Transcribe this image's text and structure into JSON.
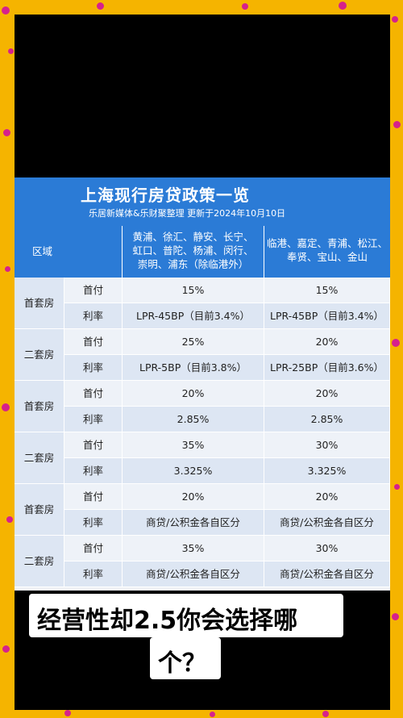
{
  "poster": {
    "title": "上海现行房贷政策一览",
    "subtitle": "乐居新媒体&乐财聚整理 更新于2024年10月10日"
  },
  "table": {
    "header": {
      "region_label": "区域",
      "col_a_line1": "黄浦、徐汇、静安、长宁、",
      "col_a_line2": "虹口、普陀、杨浦、闵行、",
      "col_a_line3": "崇明、浦东（除临港外）",
      "col_b_line1": "临港、嘉定、青浦、松江、",
      "col_b_line2": "奉贤、宝山、金山"
    },
    "rows": [
      {
        "group": "首套房",
        "items": [
          {
            "label": "首付",
            "a": "15%",
            "b": "15%"
          },
          {
            "label": "利率",
            "a": "LPR-45BP（目前3.4%）",
            "b": "LPR-45BP（目前3.4%）"
          }
        ]
      },
      {
        "group": "二套房",
        "items": [
          {
            "label": "首付",
            "a": "25%",
            "b": "20%"
          },
          {
            "label": "利率",
            "a": "LPR-5BP（目前3.8%）",
            "b": "LPR-25BP（目前3.6%）"
          }
        ]
      },
      {
        "group": "首套房",
        "items": [
          {
            "label": "首付",
            "a": "20%",
            "b": "20%"
          },
          {
            "label": "利率",
            "a": "2.85%",
            "b": "2.85%"
          }
        ]
      },
      {
        "group": "二套房",
        "items": [
          {
            "label": "首付",
            "a": "35%",
            "b": "30%"
          },
          {
            "label": "利率",
            "a": "3.325%",
            "b": "3.325%"
          }
        ]
      },
      {
        "group": "首套房",
        "items": [
          {
            "label": "首付",
            "a": "20%",
            "b": "20%"
          },
          {
            "label": "利率",
            "a": "商贷/公积金各自区分",
            "b": "商贷/公积金各自区分"
          }
        ]
      },
      {
        "group": "二套房",
        "items": [
          {
            "label": "首付",
            "a": "35%",
            "b": "30%"
          },
          {
            "label": "利率",
            "a": "商贷/公积金各自区分",
            "b": "商贷/公积金各自区分"
          }
        ]
      }
    ]
  },
  "caption": {
    "line1": "经营性却2.5你会选择哪",
    "line2": "个？"
  },
  "colors": {
    "frame": "#f5b400",
    "dots": "#d6218c",
    "header_blue": "#2b7bd6",
    "row_light": "#eef2f8",
    "row_dark": "#dde6f3"
  }
}
